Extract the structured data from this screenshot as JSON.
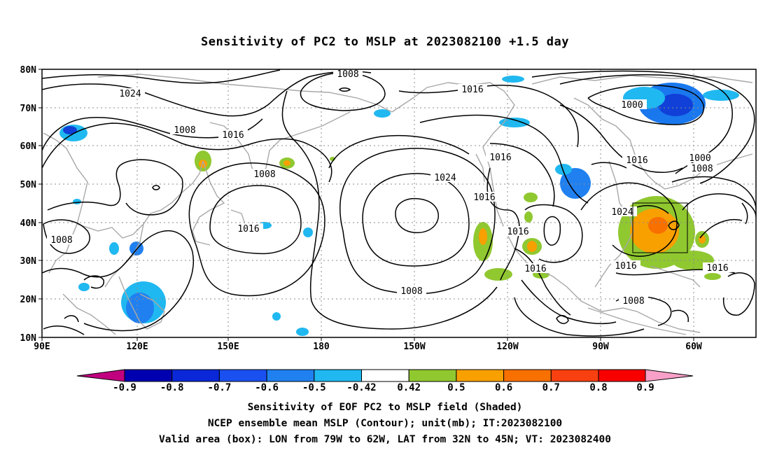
{
  "title": "Sensitivity of PC2 to MSLP at 2023082100 +1.5 day",
  "map": {
    "lat_labels": [
      "80N",
      "70N",
      "60N",
      "50N",
      "40N",
      "30N",
      "20N",
      "10N"
    ],
    "lon_labels": [
      "90E",
      "120E",
      "150E",
      "180",
      "150W",
      "120W",
      "90W",
      "60W"
    ],
    "contour_labels": [
      "1024",
      "1008",
      "1016",
      "1008",
      "1008",
      "1016",
      "1008",
      "1016",
      "1000",
      "1016",
      "1024",
      "1016",
      "1016",
      "1016",
      "1008",
      "1016",
      "1024",
      "1000",
      "1008",
      "1016",
      "1016",
      "1008"
    ],
    "valid_area": {
      "lon_west": "79W",
      "lon_east": "62W",
      "lat_south": "32N",
      "lat_north": "45N"
    },
    "colors": {
      "negative": [
        "#c0007f",
        "#0000b0",
        "#0a28d8",
        "#1a50f0",
        "#2080f0",
        "#20b8f0"
      ],
      "neutral": "#ffffff",
      "positive": [
        "#90c830",
        "#f8a000",
        "#f87000",
        "#f84010",
        "#f80000",
        "#f8a0c8"
      ]
    }
  },
  "colorbar": {
    "labels": [
      "-0.9",
      "-0.8",
      "-0.7",
      "-0.6",
      "-0.5",
      "-0.42",
      "0.42",
      "0.5",
      "0.6",
      "0.7",
      "0.8",
      "0.9"
    ]
  },
  "footer": {
    "line1": "Sensitivity of EOF PC2 to MSLP field (Shaded)",
    "line2": "NCEP ensemble mean MSLP (Contour); unit(mb); IT:2023082100",
    "line3": "Valid area (box): LON from 79W to 62W, LAT from 32N to 45N; VT: 2023082400"
  }
}
